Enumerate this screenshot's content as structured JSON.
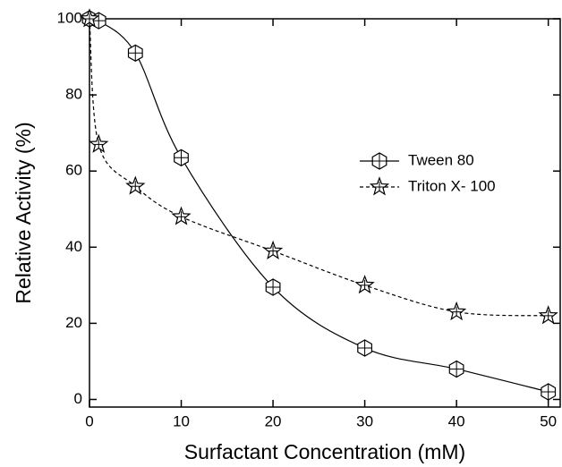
{
  "chart_data": {
    "type": "line",
    "x_label": "Surfactant Concentration (mM)",
    "y_label": "Relative Activity (%)",
    "xlim": [
      0,
      51.3
    ],
    "ylim": [
      -2,
      100
    ],
    "xticks": [
      0,
      10,
      20,
      30,
      40,
      50
    ],
    "yticks": [
      0,
      20,
      40,
      60,
      80,
      100
    ],
    "legend_position": "right",
    "series": [
      {
        "name": "Tween 80",
        "color": "#000000",
        "line_style": "solid",
        "marker": "hexagon",
        "x": [
          0,
          1,
          5,
          10,
          20,
          30,
          40,
          50
        ],
        "values": [
          100,
          99.5,
          91,
          63.5,
          29.5,
          13.5,
          8,
          2
        ]
      },
      {
        "name": "Triton X- 100",
        "color": "#000000",
        "line_style": "dashed",
        "marker": "star",
        "x": [
          0,
          1,
          5,
          10,
          20,
          30,
          40,
          50
        ],
        "values": [
          100,
          67,
          56,
          48,
          39,
          30,
          23,
          22
        ]
      }
    ]
  }
}
